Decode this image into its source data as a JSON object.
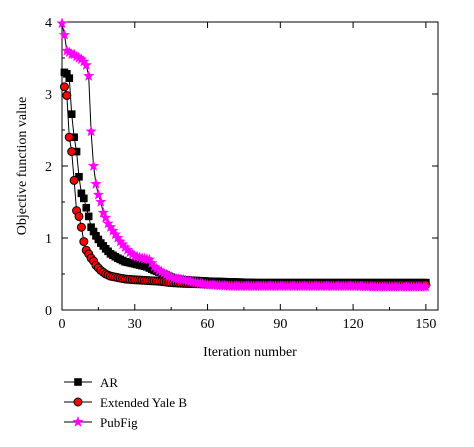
{
  "chart_data": {
    "type": "line",
    "title": "",
    "xlabel": "Iteration number",
    "ylabel": "Objective function value",
    "xlim": [
      0,
      155
    ],
    "ylim": [
      0,
      4
    ],
    "xticks": [
      0,
      30,
      60,
      90,
      120,
      150
    ],
    "yticks": [
      0,
      1,
      2,
      3,
      4
    ],
    "grid": false,
    "legend_position": "bottom-left, below plot",
    "series": [
      {
        "name": "AR",
        "color": "#000000",
        "marker": "square",
        "x": [
          1,
          2,
          3,
          4,
          5,
          6,
          7,
          8,
          9,
          10,
          11,
          12,
          14,
          16,
          18,
          20,
          23,
          26,
          30,
          35,
          38,
          42,
          46,
          50,
          55,
          60,
          70,
          80,
          90,
          100,
          110,
          120,
          130,
          140,
          150
        ],
        "y": [
          3.3,
          3.28,
          3.22,
          2.72,
          2.4,
          2.2,
          1.85,
          1.62,
          1.55,
          1.42,
          1.3,
          1.15,
          1.03,
          0.93,
          0.85,
          0.78,
          0.72,
          0.67,
          0.64,
          0.6,
          0.55,
          0.5,
          0.44,
          0.42,
          0.41,
          0.4,
          0.39,
          0.38,
          0.38,
          0.38,
          0.38,
          0.38,
          0.38,
          0.38,
          0.38
        ]
      },
      {
        "name": "Extended Yale B",
        "color": "#ff0000",
        "marker": "circle",
        "x": [
          1,
          2,
          3,
          4,
          5,
          6,
          7,
          8,
          9,
          10,
          11,
          12,
          13,
          14,
          16,
          18,
          20,
          23,
          26,
          30,
          35,
          40,
          45,
          50,
          60,
          70,
          80,
          90,
          100,
          110,
          120,
          130,
          140,
          150
        ],
        "y": [
          3.1,
          2.98,
          2.4,
          2.2,
          1.8,
          1.38,
          1.3,
          1.15,
          0.95,
          0.83,
          0.78,
          0.72,
          0.68,
          0.62,
          0.55,
          0.5,
          0.47,
          0.45,
          0.43,
          0.42,
          0.41,
          0.4,
          0.38,
          0.37,
          0.36,
          0.35,
          0.35,
          0.35,
          0.35,
          0.35,
          0.35,
          0.35,
          0.35,
          0.35
        ]
      },
      {
        "name": "PubFig",
        "color": "#ff00ff",
        "marker": "star",
        "x": [
          0,
          1,
          2,
          3,
          4,
          5,
          6,
          7,
          8,
          9,
          10,
          11,
          12,
          13,
          14,
          15,
          16,
          17,
          18,
          19,
          20,
          22,
          24,
          26,
          28,
          30,
          33,
          36,
          38,
          40,
          43,
          46,
          50,
          55,
          60,
          70,
          80,
          90,
          100,
          110,
          120,
          130,
          140,
          150
        ],
        "y": [
          3.98,
          3.82,
          3.6,
          3.58,
          3.55,
          3.55,
          3.52,
          3.5,
          3.48,
          3.45,
          3.4,
          3.25,
          2.48,
          2.0,
          1.75,
          1.6,
          1.5,
          1.35,
          1.28,
          1.2,
          1.15,
          1.05,
          0.95,
          0.87,
          0.8,
          0.75,
          0.72,
          0.7,
          0.6,
          0.55,
          0.49,
          0.44,
          0.42,
          0.38,
          0.35,
          0.33,
          0.33,
          0.33,
          0.33,
          0.33,
          0.33,
          0.32,
          0.32,
          0.32
        ]
      }
    ]
  }
}
